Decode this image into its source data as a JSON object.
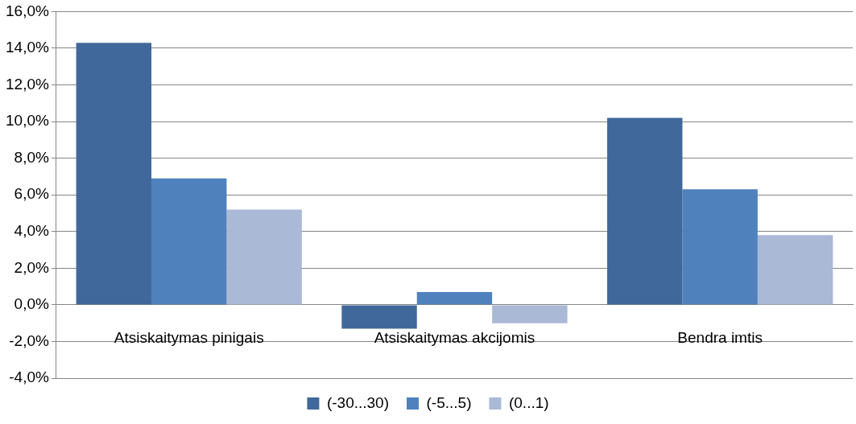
{
  "chart_data": {
    "type": "bar",
    "categories": [
      "Atsiskaitymas pinigais",
      "Atsiskaitymas akcijomis",
      "Bendra imtis"
    ],
    "series": [
      {
        "name": "(-30...30)",
        "color": "#41689a",
        "values": [
          14.3,
          -1.3,
          10.2
        ]
      },
      {
        "name": "(-5...5)",
        "color": "#4f81bd",
        "values": [
          6.9,
          0.7,
          6.3
        ]
      },
      {
        "name": "(0...1)",
        "color": "#a9b9d6",
        "values": [
          5.2,
          -1.0,
          3.8
        ]
      }
    ],
    "ylim": [
      -4,
      16
    ],
    "yticks": [
      {
        "value": -4,
        "label": "-4,0%"
      },
      {
        "value": -2,
        "label": "-2,0%"
      },
      {
        "value": 0,
        "label": "0,0%"
      },
      {
        "value": 2,
        "label": "2,0%"
      },
      {
        "value": 4,
        "label": "4,0%"
      },
      {
        "value": 6,
        "label": "6,0%"
      },
      {
        "value": 8,
        "label": "8,0%"
      },
      {
        "value": 10,
        "label": "10,0%"
      },
      {
        "value": 12,
        "label": "12,0%"
      },
      {
        "value": 14,
        "label": "14,0%"
      },
      {
        "value": 16,
        "label": "16,0%"
      }
    ],
    "grid": "y",
    "legend": "bottom"
  }
}
